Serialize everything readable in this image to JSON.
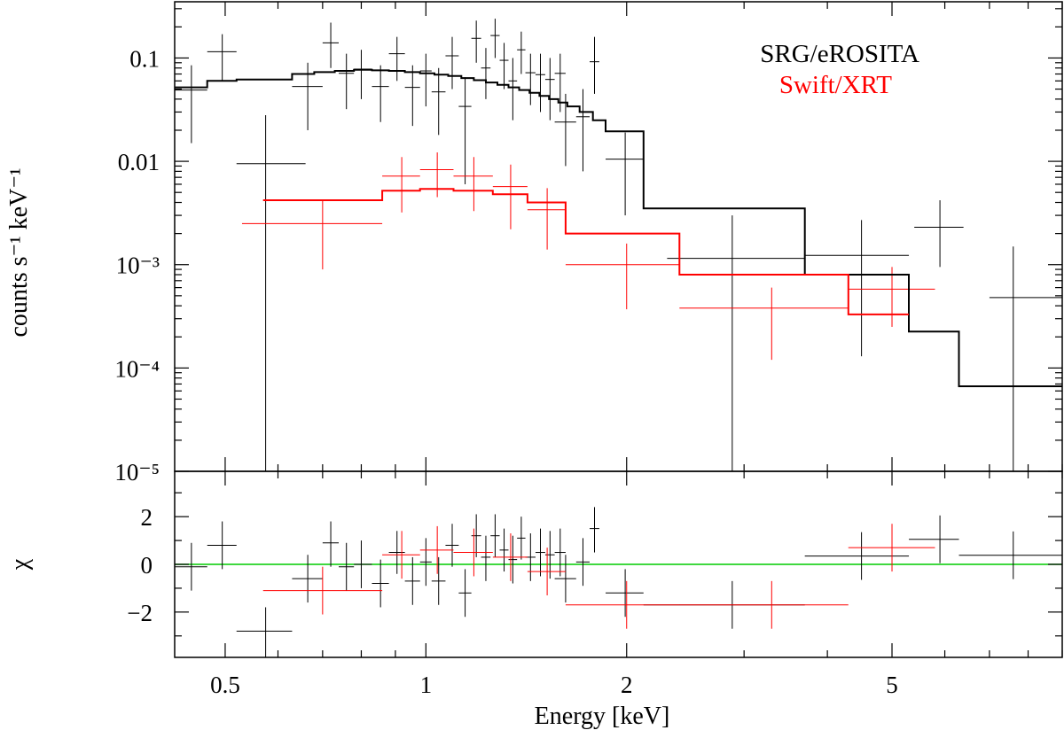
{
  "chart_data": {
    "type": "scatter",
    "title": "",
    "xlabel": "Energy [keV]",
    "xscale": "log",
    "xlim": [
      0.42,
      9.0
    ],
    "x_ticks": [
      {
        "v": 0.5,
        "label": "0.5"
      },
      {
        "v": 1,
        "label": "1"
      },
      {
        "v": 2,
        "label": "2"
      },
      {
        "v": 5,
        "label": "5"
      }
    ],
    "x_minor_ticks": [
      0.6,
      0.7,
      0.8,
      0.9,
      3,
      4,
      6,
      7,
      8,
      9
    ],
    "top_panel": {
      "ylabel": "counts s⁻¹ keV⁻¹",
      "yscale": "log",
      "ylim": [
        1e-05,
        0.35
      ],
      "y_ticks": [
        {
          "v": 0.1,
          "label": "0.1"
        },
        {
          "v": 0.01,
          "label": "0.01"
        },
        {
          "v": 0.001,
          "label": "10⁻³"
        },
        {
          "v": 0.0001,
          "label": "10⁻⁴"
        },
        {
          "v": 1e-05,
          "label": "10⁻⁵"
        }
      ],
      "legend": [
        {
          "label": "SRG/eROSITA",
          "color": "#000000"
        },
        {
          "label": "Swift/XRT",
          "color": "#ff0000"
        }
      ],
      "series": [
        {
          "name": "SRG/eROSITA",
          "color": "#000000",
          "data": [
            {
              "xlo": 0.42,
              "xhi": 0.47,
              "x": 0.445,
              "y": 0.049,
              "ylo": 0.015,
              "yhi": 0.085
            },
            {
              "xlo": 0.47,
              "xhi": 0.52,
              "x": 0.495,
              "y": 0.115,
              "ylo": 0.06,
              "yhi": 0.17
            },
            {
              "xlo": 0.52,
              "xhi": 0.66,
              "x": 0.575,
              "y": 0.0095,
              "ylo": 9.5e-06,
              "yhi": 0.028
            },
            {
              "xlo": 0.63,
              "xhi": 0.7,
              "x": 0.665,
              "y": 0.053,
              "ylo": 0.02,
              "yhi": 0.09
            },
            {
              "xlo": 0.7,
              "xhi": 0.74,
              "x": 0.72,
              "y": 0.14,
              "ylo": 0.08,
              "yhi": 0.22
            },
            {
              "xlo": 0.74,
              "xhi": 0.78,
              "x": 0.76,
              "y": 0.071,
              "ylo": 0.032,
              "yhi": 0.11
            },
            {
              "xlo": 0.78,
              "xhi": 0.83,
              "x": 0.8,
              "y": 0.078,
              "ylo": 0.04,
              "yhi": 0.12
            },
            {
              "xlo": 0.83,
              "xhi": 0.88,
              "x": 0.855,
              "y": 0.053,
              "ylo": 0.024,
              "yhi": 0.085
            },
            {
              "xlo": 0.88,
              "xhi": 0.93,
              "x": 0.905,
              "y": 0.11,
              "ylo": 0.06,
              "yhi": 0.16
            },
            {
              "xlo": 0.93,
              "xhi": 0.98,
              "x": 0.955,
              "y": 0.052,
              "ylo": 0.022,
              "yhi": 0.085
            },
            {
              "xlo": 0.98,
              "xhi": 1.02,
              "x": 1.0,
              "y": 0.075,
              "ylo": 0.034,
              "yhi": 0.11
            },
            {
              "xlo": 1.02,
              "xhi": 1.07,
              "x": 1.045,
              "y": 0.047,
              "ylo": 0.018,
              "yhi": 0.08
            },
            {
              "xlo": 1.07,
              "xhi": 1.12,
              "x": 1.095,
              "y": 0.105,
              "ylo": 0.05,
              "yhi": 0.16
            },
            {
              "xlo": 1.12,
              "xhi": 1.17,
              "x": 1.145,
              "y": 0.034,
              "ylo": 0.006,
              "yhi": 0.065
            },
            {
              "xlo": 1.17,
              "xhi": 1.21,
              "x": 1.19,
              "y": 0.155,
              "ylo": 0.09,
              "yhi": 0.23
            },
            {
              "xlo": 1.21,
              "xhi": 1.25,
              "x": 1.23,
              "y": 0.08,
              "ylo": 0.04,
              "yhi": 0.125
            },
            {
              "xlo": 1.25,
              "xhi": 1.29,
              "x": 1.27,
              "y": 0.165,
              "ylo": 0.1,
              "yhi": 0.24
            },
            {
              "xlo": 1.29,
              "xhi": 1.33,
              "x": 1.31,
              "y": 0.095,
              "ylo": 0.05,
              "yhi": 0.14
            },
            {
              "xlo": 1.33,
              "xhi": 1.37,
              "x": 1.35,
              "y": 0.06,
              "ylo": 0.025,
              "yhi": 0.1
            },
            {
              "xlo": 1.37,
              "xhi": 1.41,
              "x": 1.39,
              "y": 0.12,
              "ylo": 0.07,
              "yhi": 0.18
            },
            {
              "xlo": 1.41,
              "xhi": 1.46,
              "x": 1.435,
              "y": 0.072,
              "ylo": 0.035,
              "yhi": 0.11
            },
            {
              "xlo": 1.46,
              "xhi": 1.51,
              "x": 1.485,
              "y": 0.069,
              "ylo": 0.03,
              "yhi": 0.11
            },
            {
              "xlo": 1.51,
              "xhi": 1.56,
              "x": 1.535,
              "y": 0.062,
              "ylo": 0.025,
              "yhi": 0.1
            },
            {
              "xlo": 1.56,
              "xhi": 1.62,
              "x": 1.59,
              "y": 0.071,
              "ylo": 0.03,
              "yhi": 0.11
            },
            {
              "xlo": 1.56,
              "xhi": 1.68,
              "x": 1.62,
              "y": 0.024,
              "ylo": 0.009,
              "yhi": 0.045
            },
            {
              "xlo": 1.68,
              "xhi": 1.76,
              "x": 1.72,
              "y": 0.027,
              "ylo": 0.008,
              "yhi": 0.05
            },
            {
              "xlo": 1.76,
              "xhi": 1.82,
              "x": 1.79,
              "y": 0.092,
              "ylo": 0.045,
              "yhi": 0.16
            },
            {
              "xlo": 1.86,
              "xhi": 2.12,
              "x": 1.99,
              "y": 0.0105,
              "ylo": 0.003,
              "yhi": 0.019
            },
            {
              "xlo": 2.3,
              "xhi": 3.7,
              "x": 2.88,
              "y": 0.00115,
              "ylo": 9.5e-06,
              "yhi": 0.003
            },
            {
              "xlo": 3.7,
              "xhi": 5.3,
              "x": 4.5,
              "y": 0.00123,
              "ylo": 0.00013,
              "yhi": 0.0027
            },
            {
              "xlo": 5.4,
              "xhi": 6.4,
              "x": 5.9,
              "y": 0.0023,
              "ylo": 0.00095,
              "yhi": 0.0042
            },
            {
              "xlo": 7.0,
              "xhi": 9.0,
              "x": 7.6,
              "y": 0.00048,
              "ylo": 9.5e-06,
              "yhi": 0.0015
            }
          ]
        },
        {
          "name": "Swift/XRT",
          "color": "#ff0000",
          "data": [
            {
              "xlo": 0.53,
              "xhi": 0.86,
              "x": 0.7,
              "y": 0.0025,
              "ylo": 0.0009,
              "yhi": 0.0042
            },
            {
              "xlo": 0.86,
              "xhi": 0.98,
              "x": 0.92,
              "y": 0.0072,
              "ylo": 0.0032,
              "yhi": 0.011
            },
            {
              "xlo": 0.98,
              "xhi": 1.1,
              "x": 1.04,
              "y": 0.0083,
              "ylo": 0.0045,
              "yhi": 0.0122
            },
            {
              "xlo": 1.1,
              "xhi": 1.26,
              "x": 1.18,
              "y": 0.0072,
              "ylo": 0.0033,
              "yhi": 0.011
            },
            {
              "xlo": 1.26,
              "xhi": 1.42,
              "x": 1.34,
              "y": 0.0057,
              "ylo": 0.0022,
              "yhi": 0.0093
            },
            {
              "xlo": 1.42,
              "xhi": 1.62,
              "x": 1.52,
              "y": 0.0034,
              "ylo": 0.0014,
              "yhi": 0.0055
            },
            {
              "xlo": 1.62,
              "xhi": 2.4,
              "x": 2.0,
              "y": 0.001,
              "ylo": 0.00037,
              "yhi": 0.0016
            },
            {
              "xlo": 2.4,
              "xhi": 4.3,
              "x": 3.3,
              "y": 0.00038,
              "ylo": 0.00012,
              "yhi": 0.0006
            },
            {
              "xlo": 4.3,
              "xhi": 5.8,
              "x": 5.0,
              "y": 0.00058,
              "ylo": 0.00025,
              "yhi": 0.00095
            }
          ]
        }
      ],
      "models": [
        {
          "name": "SRG/eROSITA model",
          "color": "#000000",
          "edges": [
            0.42,
            0.47,
            0.52,
            0.57,
            0.63,
            0.68,
            0.73,
            0.78,
            0.83,
            0.88,
            0.93,
            0.98,
            1.03,
            1.08,
            1.13,
            1.18,
            1.23,
            1.28,
            1.33,
            1.38,
            1.43,
            1.48,
            1.53,
            1.58,
            1.63,
            1.7,
            1.78,
            1.86,
            2.12,
            3.7,
            5.3,
            6.3,
            9.0
          ],
          "values": [
            0.052,
            0.06,
            0.062,
            0.062,
            0.07,
            0.073,
            0.075,
            0.077,
            0.076,
            0.075,
            0.073,
            0.071,
            0.069,
            0.067,
            0.064,
            0.061,
            0.058,
            0.055,
            0.052,
            0.049,
            0.046,
            0.043,
            0.04,
            0.037,
            0.034,
            0.03,
            0.025,
            0.0195,
            0.0035,
            0.0008,
            0.000225,
            6.65e-05
          ]
        },
        {
          "name": "Swift/XRT model",
          "color": "#ff0000",
          "edges": [
            0.57,
            0.86,
            0.98,
            1.1,
            1.26,
            1.42,
            1.62,
            2.4,
            4.3,
            5.3
          ],
          "values": [
            0.0042,
            0.0052,
            0.0054,
            0.0052,
            0.0048,
            0.004,
            0.002,
            0.0008,
            0.00033
          ]
        }
      ]
    },
    "bottom_panel": {
      "ylabel": "χ",
      "yscale": "linear",
      "ylim": [
        -3.9,
        3.9
      ],
      "y_ticks": [
        {
          "v": 2,
          "label": "2"
        },
        {
          "v": 0,
          "label": "0"
        },
        {
          "v": -2,
          "label": "−2"
        }
      ],
      "y_minor_ticks": [
        -3,
        -1,
        1,
        3
      ],
      "zero_line_color": "#00cc00",
      "series": [
        {
          "name": "SRG/eROSITA residuals",
          "color": "#000000",
          "data": [
            {
              "xlo": 0.42,
              "xhi": 0.47,
              "x": 0.445,
              "y": -0.1,
              "ylo": -1.1,
              "yhi": 0.9
            },
            {
              "xlo": 0.47,
              "xhi": 0.52,
              "x": 0.495,
              "y": 0.8,
              "ylo": -0.2,
              "yhi": 1.8
            },
            {
              "xlo": 0.52,
              "xhi": 0.63,
              "x": 0.575,
              "y": -2.8,
              "ylo": -3.9,
              "yhi": -1.8
            },
            {
              "xlo": 0.63,
              "xhi": 0.7,
              "x": 0.665,
              "y": -0.6,
              "ylo": -1.6,
              "yhi": 0.4
            },
            {
              "xlo": 0.7,
              "xhi": 0.74,
              "x": 0.72,
              "y": 0.9,
              "ylo": -0.1,
              "yhi": 1.8
            },
            {
              "xlo": 0.74,
              "xhi": 0.78,
              "x": 0.76,
              "y": -0.1,
              "ylo": -1.1,
              "yhi": 0.9
            },
            {
              "xlo": 0.78,
              "xhi": 0.83,
              "x": 0.8,
              "y": 0.0,
              "ylo": -1.0,
              "yhi": 1.0
            },
            {
              "xlo": 0.83,
              "xhi": 0.88,
              "x": 0.855,
              "y": -0.8,
              "ylo": -1.8,
              "yhi": 0.2
            },
            {
              "xlo": 0.88,
              "xhi": 0.93,
              "x": 0.905,
              "y": 0.5,
              "ylo": -0.4,
              "yhi": 1.4
            },
            {
              "xlo": 0.93,
              "xhi": 0.98,
              "x": 0.955,
              "y": -0.7,
              "ylo": -1.7,
              "yhi": 0.3
            },
            {
              "xlo": 0.98,
              "xhi": 1.02,
              "x": 1.0,
              "y": 0.1,
              "ylo": -0.9,
              "yhi": 1.1
            },
            {
              "xlo": 1.02,
              "xhi": 1.07,
              "x": 1.045,
              "y": -0.7,
              "ylo": -1.7,
              "yhi": 0.3
            },
            {
              "xlo": 1.07,
              "xhi": 1.12,
              "x": 1.095,
              "y": 0.8,
              "ylo": -0.1,
              "yhi": 1.7
            },
            {
              "xlo": 1.12,
              "xhi": 1.17,
              "x": 1.145,
              "y": -1.2,
              "ylo": -2.2,
              "yhi": -0.2
            },
            {
              "xlo": 1.17,
              "xhi": 1.21,
              "x": 1.19,
              "y": 1.2,
              "ylo": 0.3,
              "yhi": 2.1
            },
            {
              "xlo": 1.21,
              "xhi": 1.25,
              "x": 1.23,
              "y": 0.3,
              "ylo": -0.7,
              "yhi": 1.2
            },
            {
              "xlo": 1.25,
              "xhi": 1.29,
              "x": 1.27,
              "y": 1.2,
              "ylo": 0.3,
              "yhi": 2.1
            },
            {
              "xlo": 1.29,
              "xhi": 1.33,
              "x": 1.31,
              "y": 0.6,
              "ylo": -0.3,
              "yhi": 1.5
            },
            {
              "xlo": 1.33,
              "xhi": 1.37,
              "x": 1.35,
              "y": 0.2,
              "ylo": -0.8,
              "yhi": 1.2
            },
            {
              "xlo": 1.37,
              "xhi": 1.41,
              "x": 1.39,
              "y": 1.1,
              "ylo": 0.2,
              "yhi": 2.0
            },
            {
              "xlo": 1.41,
              "xhi": 1.46,
              "x": 1.435,
              "y": 0.3,
              "ylo": -0.7,
              "yhi": 1.3
            },
            {
              "xlo": 1.46,
              "xhi": 1.51,
              "x": 1.485,
              "y": 0.5,
              "ylo": -0.5,
              "yhi": 1.5
            },
            {
              "xlo": 1.51,
              "xhi": 1.56,
              "x": 1.535,
              "y": 0.4,
              "ylo": -0.6,
              "yhi": 1.4
            },
            {
              "xlo": 1.56,
              "xhi": 1.62,
              "x": 1.59,
              "y": 0.5,
              "ylo": -0.5,
              "yhi": 1.5
            },
            {
              "xlo": 1.56,
              "xhi": 1.68,
              "x": 1.62,
              "y": -0.6,
              "ylo": -1.6,
              "yhi": 0.4
            },
            {
              "xlo": 1.68,
              "xhi": 1.76,
              "x": 1.72,
              "y": 0.1,
              "ylo": -0.9,
              "yhi": 1.1
            },
            {
              "xlo": 1.76,
              "xhi": 1.82,
              "x": 1.79,
              "y": 1.5,
              "ylo": 0.5,
              "yhi": 2.4
            },
            {
              "xlo": 1.86,
              "xhi": 2.12,
              "x": 1.99,
              "y": -1.2,
              "ylo": -2.2,
              "yhi": -0.2
            },
            {
              "xlo": 2.12,
              "xhi": 3.7,
              "x": 2.88,
              "y": -1.7,
              "ylo": -2.7,
              "yhi": -0.7
            },
            {
              "xlo": 3.7,
              "xhi": 5.3,
              "x": 4.5,
              "y": 0.35,
              "ylo": -0.65,
              "yhi": 1.35
            },
            {
              "xlo": 5.3,
              "xhi": 6.3,
              "x": 5.9,
              "y": 1.05,
              "ylo": 0.05,
              "yhi": 2.05
            },
            {
              "xlo": 6.3,
              "xhi": 9.0,
              "x": 7.6,
              "y": 0.38,
              "ylo": -0.62,
              "yhi": 1.38
            }
          ]
        },
        {
          "name": "Swift/XRT residuals",
          "color": "#ff0000",
          "data": [
            {
              "xlo": 0.57,
              "xhi": 0.86,
              "x": 0.7,
              "y": -1.1,
              "ylo": -2.1,
              "yhi": -0.1
            },
            {
              "xlo": 0.86,
              "xhi": 0.98,
              "x": 0.92,
              "y": 0.4,
              "ylo": -0.6,
              "yhi": 1.4
            },
            {
              "xlo": 0.98,
              "xhi": 1.1,
              "x": 1.04,
              "y": 0.6,
              "ylo": -0.4,
              "yhi": 1.6
            },
            {
              "xlo": 1.1,
              "xhi": 1.26,
              "x": 1.18,
              "y": 0.5,
              "ylo": -0.5,
              "yhi": 1.5
            },
            {
              "xlo": 1.26,
              "xhi": 1.42,
              "x": 1.34,
              "y": 0.3,
              "ylo": -0.7,
              "yhi": 1.3
            },
            {
              "xlo": 1.42,
              "xhi": 1.62,
              "x": 1.52,
              "y": -0.3,
              "ylo": -1.3,
              "yhi": 0.7
            },
            {
              "xlo": 1.62,
              "xhi": 2.4,
              "x": 2.0,
              "y": -1.7,
              "ylo": -2.7,
              "yhi": -0.7
            },
            {
              "xlo": 2.4,
              "xhi": 4.3,
              "x": 3.3,
              "y": -1.7,
              "ylo": -2.7,
              "yhi": -0.7
            },
            {
              "xlo": 4.3,
              "xhi": 5.8,
              "x": 5.0,
              "y": 0.7,
              "ylo": -0.3,
              "yhi": 1.7
            }
          ]
        }
      ]
    }
  }
}
